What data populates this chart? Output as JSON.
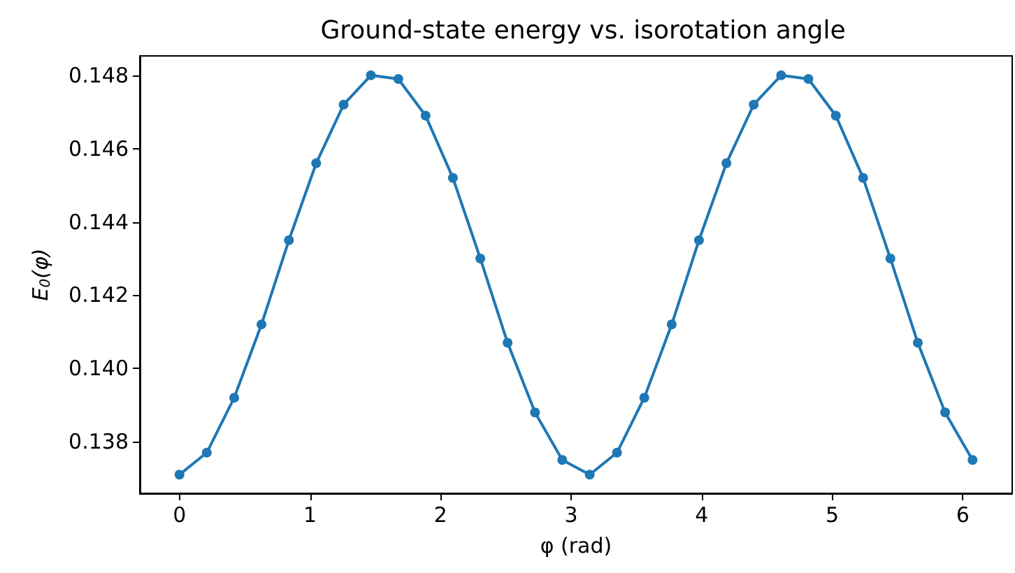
{
  "chart_data": {
    "type": "line",
    "title": "Ground-state energy vs. isorotation angle",
    "xlabel": "φ (rad)",
    "ylabel": "E$_{0}$(φ)",
    "x": [
      0,
      0.209,
      0.419,
      0.628,
      0.838,
      1.047,
      1.257,
      1.466,
      1.676,
      1.885,
      2.094,
      2.304,
      2.513,
      2.723,
      2.932,
      3.142,
      3.351,
      3.56,
      3.77,
      3.979,
      4.189,
      4.398,
      4.608,
      4.817,
      5.027,
      5.236,
      5.445,
      5.655,
      5.864,
      6.074
    ],
    "series": [
      {
        "color": "#1f77b4",
        "values": [
          0.1371,
          0.1377,
          0.1392,
          0.1412,
          0.1435,
          0.1456,
          0.1472,
          0.148,
          0.1479,
          0.1469,
          0.1452,
          0.143,
          0.1407,
          0.1388,
          0.1375,
          0.1371,
          0.1377,
          0.1392,
          0.1412,
          0.1435,
          0.1456,
          0.1472,
          0.148,
          0.1479,
          0.1469,
          0.1452,
          0.143,
          0.1407,
          0.1388,
          0.1375
        ]
      }
    ],
    "xlim": [
      -0.304,
      6.378
    ],
    "xticks": [
      0,
      1,
      2,
      3,
      4,
      5,
      6
    ],
    "ylim": [
      0.13659,
      0.14853
    ],
    "yticks": [
      {
        "value": 0.138,
        "label": "0.138"
      },
      {
        "value": 0.14,
        "label": "0.140"
      },
      {
        "value": 0.142,
        "label": "0.142"
      },
      {
        "value": 0.144,
        "label": "0.144"
      },
      {
        "value": 0.146,
        "label": "0.146"
      },
      {
        "value": 0.148,
        "label": "0.148"
      }
    ],
    "grid": false,
    "marker": "circle",
    "line_style": "solid"
  }
}
